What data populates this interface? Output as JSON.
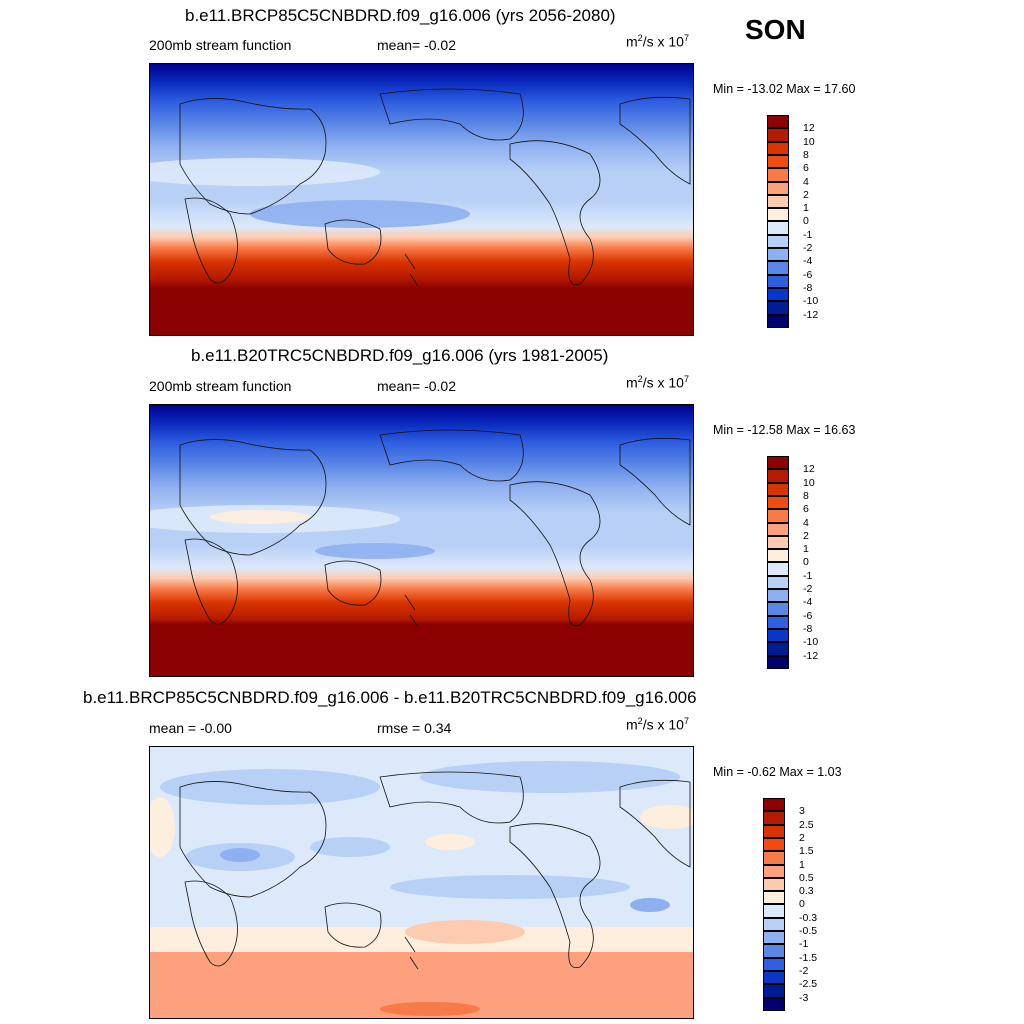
{
  "season": "SON",
  "panels": [
    {
      "title": "b.e11.BRCP85C5CNBDRD.f09_g16.006 (yrs 2056-2080)",
      "left_label": "200mb stream function",
      "center_label": "mean=  -0.02",
      "units_base": "m",
      "units_exp": "2",
      "units_mid": "/s x 10",
      "units_exp2": "7",
      "minmax": "Min = -13.02 Max =  17.60",
      "colorbar_ticks": [
        "12",
        "10",
        "8",
        "6",
        "4",
        "2",
        "1",
        "0",
        "-1",
        "-2",
        "-4",
        "-6",
        "-8",
        "-10",
        "-12"
      ]
    },
    {
      "title": "b.e11.B20TRC5CNBDRD.f09_g16.006 (yrs 1981-2005)",
      "left_label": "200mb stream function",
      "center_label": "mean=  -0.02",
      "units_base": "m",
      "units_exp": "2",
      "units_mid": "/s x 10",
      "units_exp2": "7",
      "minmax": "Min = -12.58 Max =  16.63",
      "colorbar_ticks": [
        "12",
        "10",
        "8",
        "6",
        "4",
        "2",
        "1",
        "0",
        "-1",
        "-2",
        "-4",
        "-6",
        "-8",
        "-10",
        "-12"
      ]
    },
    {
      "title": "b.e11.BRCP85C5CNBDRD.f09_g16.006 - b.e11.B20TRC5CNBDRD.f09_g16.006",
      "left_label": "mean =  -0.00",
      "center_label": "rmse =   0.34",
      "units_base": "m",
      "units_exp": "2",
      "units_mid": "/s x 10",
      "units_exp2": "7",
      "minmax": "Min =  -0.62 Max =   1.03",
      "colorbar_ticks": [
        "3",
        "2.5",
        "2",
        "1.5",
        "1",
        "0.5",
        "0.3",
        "0",
        "-0.3",
        "-0.5",
        "-1",
        "-1.5",
        "-2",
        "-2.5",
        "-3"
      ]
    }
  ],
  "colors": {
    "colorbar": [
      "#8b0000",
      "#b41a00",
      "#d83400",
      "#f04c10",
      "#f87a48",
      "#fca07e",
      "#fdcbb0",
      "#fdeedd",
      "#dce9fb",
      "#b8d0f6",
      "#8eb0f0",
      "#5a86e6",
      "#2f5ee0",
      "#0a36c8",
      "#001c94",
      "#00006e"
    ]
  }
}
